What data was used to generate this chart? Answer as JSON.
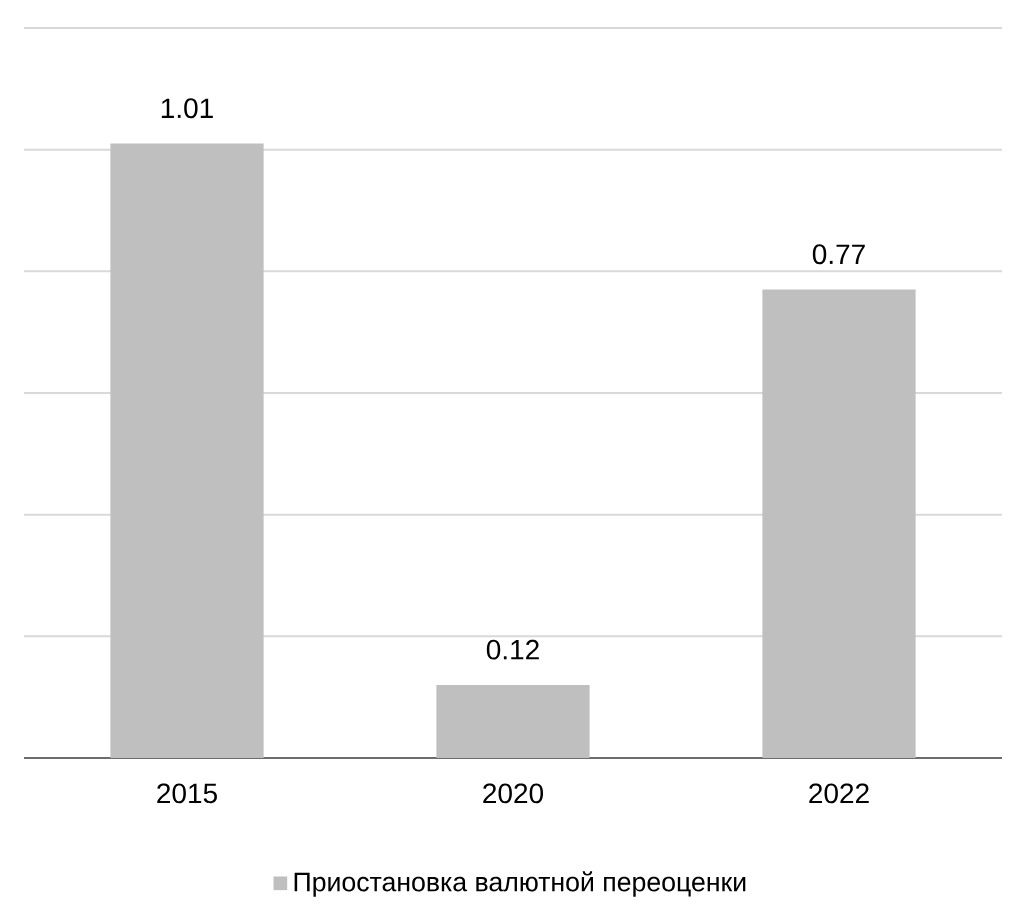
{
  "chart_data": {
    "type": "bar",
    "categories": [
      "2015",
      "2020",
      "2022"
    ],
    "series": [
      {
        "name": "Приостановка валютной переоценки",
        "color": "#bfbfbf",
        "values": [
          1.01,
          0.12,
          0.77
        ]
      }
    ],
    "data_labels": true,
    "ylim": [
      0,
      1.2
    ],
    "yticks": [
      {
        "value": 0,
        "label": null
      },
      {
        "value": 0.2,
        "label": null
      },
      {
        "value": 0.4,
        "label": null
      },
      {
        "value": 0.6,
        "label": null
      },
      {
        "value": 0.8,
        "label": null
      },
      {
        "value": 1.0,
        "label": null
      },
      {
        "value": 1.2,
        "label": null
      }
    ],
    "grid": "y",
    "legend": "bottom",
    "tick_labels": "x"
  }
}
